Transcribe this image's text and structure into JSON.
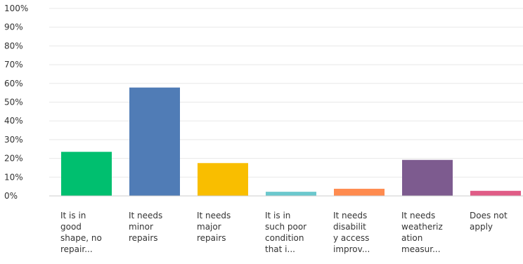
{
  "chart_data": {
    "type": "bar",
    "categories": [
      "It is in\ngood\nshape, no\nrepair...",
      "It needs\nminor\nrepairs",
      "It needs\nmajor\nrepairs",
      "It is in\nsuch poor\ncondition\nthat i...",
      "It needs\ndisabilit\ny access\nimprov...",
      "It needs\nweatheriz\nation\nmeasur...",
      "Does not\napply"
    ],
    "values": [
      23.5,
      57.8,
      17.5,
      2.2,
      3.8,
      19.2,
      2.7
    ],
    "colors": [
      "#00bf6f",
      "#507cb6",
      "#f9be00",
      "#6bc8cd",
      "#ff8b4f",
      "#7d5b8f",
      "#e05c86"
    ],
    "ylim": [
      0,
      100
    ],
    "yticks": [
      "0%",
      "10%",
      "20%",
      "30%",
      "40%",
      "50%",
      "60%",
      "70%",
      "80%",
      "90%",
      "100%"
    ],
    "grid": true,
    "gridline_color": "#e8e8e8",
    "axis_color": "#cccccc"
  }
}
